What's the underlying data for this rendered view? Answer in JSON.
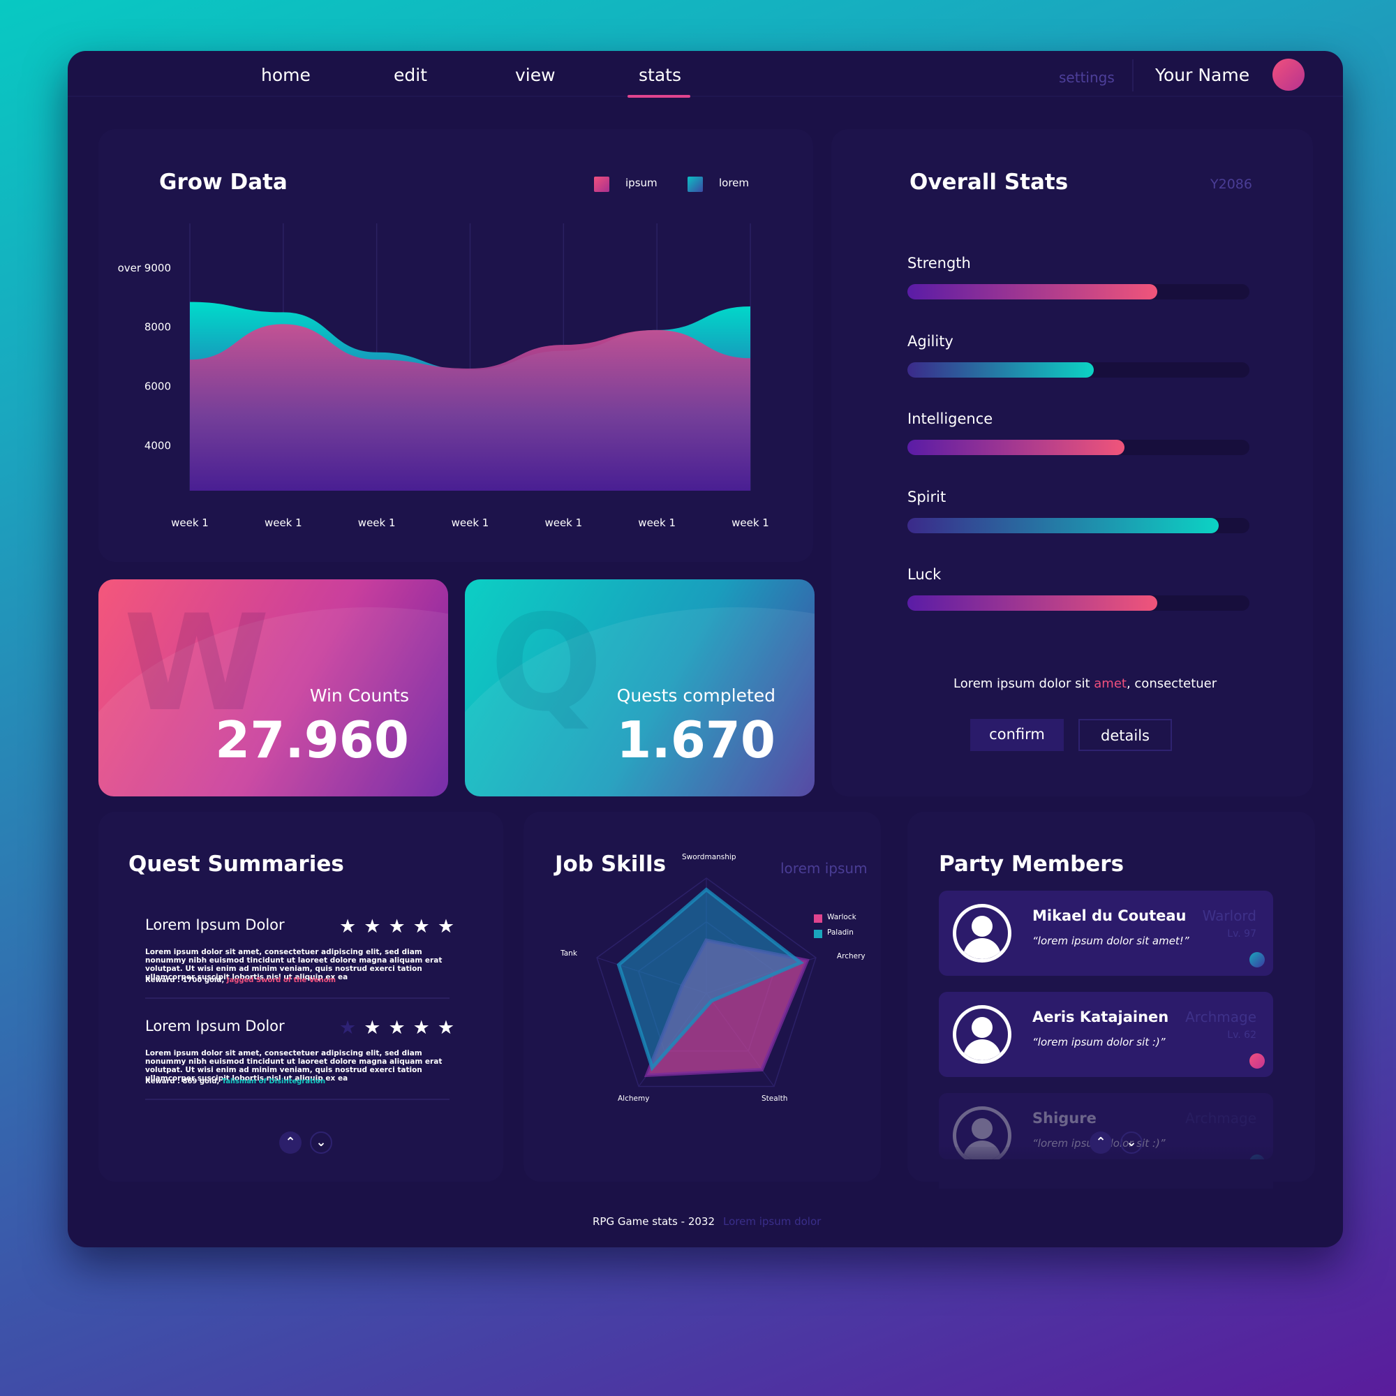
{
  "nav": {
    "items": [
      {
        "label": "home"
      },
      {
        "label": "edit"
      },
      {
        "label": "view"
      },
      {
        "label": "stats"
      }
    ],
    "active": "stats",
    "settings": "settings",
    "user_name": "Your Name"
  },
  "grow": {
    "title": "Grow Data",
    "legend": [
      {
        "label": "ipsum",
        "color": "#e0448e"
      },
      {
        "label": "lorem",
        "color": "#1aa6bd"
      }
    ]
  },
  "chart_data": {
    "type": "area",
    "title": "Grow Data",
    "categories": [
      "week 1",
      "week 1",
      "week 1",
      "week 1",
      "week 1",
      "week 1",
      "week 1"
    ],
    "y_tick_labels": [
      "4000",
      "6000",
      "8000",
      "over 9000"
    ],
    "ylim": [
      2900,
      9500
    ],
    "series": [
      {
        "name": "lorem",
        "color": "#00d6c6",
        "values": [
          8850,
          8500,
          7150,
          6550,
          7200,
          7900,
          8700
        ]
      },
      {
        "name": "ipsum",
        "color": "#e0448e",
        "values": [
          6900,
          8100,
          6900,
          6600,
          7400,
          7900,
          6950
        ]
      }
    ],
    "grid": "vertical",
    "legend_position": "top-right"
  },
  "tiles": {
    "win": {
      "letter": "W",
      "label": "Win Counts",
      "value": "27.960"
    },
    "quest": {
      "letter": "Q",
      "label": "Quests completed",
      "value": "1.670"
    }
  },
  "overall": {
    "title": "Overall Stats",
    "year": "Y2086",
    "stats": [
      {
        "label": "Strength",
        "fraction": 0.73,
        "gradient": [
          "#5a1ca6",
          "#f0557a"
        ]
      },
      {
        "label": "Agility",
        "fraction": 0.545,
        "gradient": [
          "#3b2a8a",
          "#0cd3c4"
        ]
      },
      {
        "label": "Intelligence",
        "fraction": 0.635,
        "gradient": [
          "#5a1ca6",
          "#f0557a"
        ]
      },
      {
        "label": "Spirit",
        "fraction": 0.91,
        "gradient": [
          "#3b2a8a",
          "#0cd3c4"
        ]
      },
      {
        "label": "Luck",
        "fraction": 0.73,
        "gradient": [
          "#5a1ca6",
          "#f0557a"
        ]
      }
    ],
    "note_before": "Lorem ipsum dolor sit ",
    "note_highlight": "amet",
    "note_after": ", consectetuer",
    "confirm": "confirm",
    "details": "details"
  },
  "quests": {
    "title": "Quest Summaries",
    "items": [
      {
        "title": "Lorem Ipsum Dolor",
        "rating": 5,
        "body": "Lorem ipsum dolor sit amet, consectetuer adipiscing elit, sed diam nonummy nibh euismod tincidunt ut laoreet dolore magna aliquam erat volutpat. Ut wisi enim ad minim veniam, quis nostrud exerci tation ullamcorper suscipit lobortis nisl ut aliquip ex ea",
        "reward_prefix": "Reward : 1700 gold, ",
        "reward_item": "Jagged Sword of the Venom",
        "reward_color": "#f0507d"
      },
      {
        "title": "Lorem Ipsum Dolor",
        "rating": 4,
        "body": "Lorem ipsum dolor sit amet, consectetuer adipiscing elit, sed diam nonummy nibh euismod tincidunt ut laoreet dolore magna aliquam erat volutpat. Ut wisi enim ad minim veniam, quis nostrud exerci tation ullamcorper suscipit lobortis nisl ut aliquip ex ea",
        "reward_prefix": "Reward : 869 gold, ",
        "reward_item": "Talisman of Disintegration",
        "reward_color": "#13c9c0"
      }
    ],
    "star_glyph": "★",
    "up_glyph": "⌃",
    "down_glyph": "⌄"
  },
  "job": {
    "title": "Job Skills",
    "subtitle": "lorem ipsum",
    "axes": [
      "Swordmanship",
      "Archery",
      "Stealth",
      "Alchemy",
      "Tank"
    ],
    "series": [
      {
        "name": "Warlock",
        "color": "#e0448e",
        "values": [
          0.46,
          0.92,
          0.82,
          0.88,
          0.22
        ]
      },
      {
        "name": "Paladin",
        "color": "#1aa6bd",
        "values": [
          0.9,
          0.86,
          0.08,
          0.8,
          0.8
        ]
      }
    ]
  },
  "party": {
    "title": "Party Members",
    "members": [
      {
        "name": "Mikael du Couteau",
        "quote": "“lorem ipsum dolor sit amet!”",
        "class": "Warlord",
        "level": "Lv. 97",
        "dot": [
          "#1aa6bd",
          "#3b3aa0"
        ]
      },
      {
        "name": "Aeris Katajainen",
        "quote": "“lorem ipsum dolor sit :)”",
        "class": "Archmage",
        "level": "Lv. 62",
        "dot": [
          "#f0507d",
          "#c33592"
        ]
      },
      {
        "name": "Shigure",
        "quote": "“lorem ipsum dolor sit :)”",
        "class": "Archmage",
        "level": "",
        "dot": [
          "#1aa6bd",
          "#3b3aa0"
        ]
      }
    ]
  },
  "footer": {
    "left": "RPG Game stats - 2032",
    "right": "Lorem ipsum dolor"
  }
}
